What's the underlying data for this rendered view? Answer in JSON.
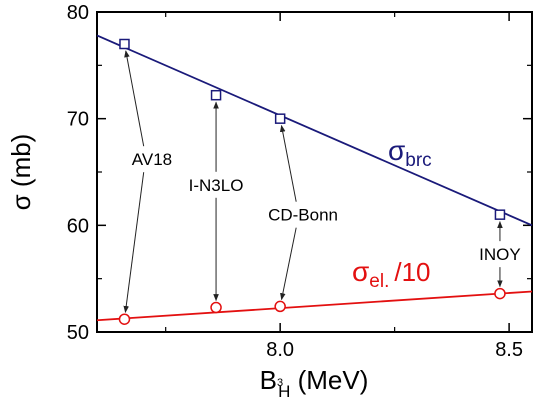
{
  "chart_data": {
    "type": "scatter",
    "x_axis": {
      "label_main": "B",
      "label_sup": "3",
      "label_sub": "H",
      "label_unit": " (MeV)",
      "range": [
        7.6,
        8.55
      ],
      "ticks": [
        8.0,
        8.5
      ],
      "tick_labels": [
        "8.0",
        "8.5"
      ],
      "minor_ticks": [
        7.75,
        8.25
      ]
    },
    "y_axis": {
      "label_main": "σ",
      "label_unit": " (mb)",
      "range": [
        50,
        80
      ],
      "ticks": [
        50,
        60,
        70,
        80
      ],
      "tick_labels": [
        "50",
        "60",
        "70",
        "80"
      ],
      "minor_ticks": [
        55,
        65,
        75
      ]
    },
    "grid": false,
    "series": [
      {
        "key": "brc",
        "name_main": "σ",
        "name_sub": "brc",
        "color": "#1a1a7a",
        "marker": "square",
        "points": [
          {
            "x": 7.66,
            "y": 77.0
          },
          {
            "x": 7.86,
            "y": 72.2
          },
          {
            "x": 8.0,
            "y": 70.0
          },
          {
            "x": 8.48,
            "y": 61.0
          }
        ],
        "fit_line": [
          [
            7.6,
            77.8
          ],
          [
            8.55,
            60.0
          ]
        ]
      },
      {
        "key": "el",
        "name_main": "σ",
        "name_sub": "el.",
        "name_suffix": "/10",
        "color": "#e31010",
        "marker": "circle",
        "points": [
          {
            "x": 7.66,
            "y": 51.2
          },
          {
            "x": 7.86,
            "y": 52.3
          },
          {
            "x": 8.0,
            "y": 52.4
          },
          {
            "x": 8.48,
            "y": 53.6
          }
        ],
        "fit_line": [
          [
            7.6,
            51.1
          ],
          [
            8.55,
            53.8
          ]
        ]
      }
    ],
    "annotations": [
      {
        "text": "AV18",
        "at": [
          7.72,
          66.2
        ],
        "targets": [
          [
            7.66,
            77.0
          ],
          [
            7.66,
            51.2
          ]
        ]
      },
      {
        "text": "I-N3LO",
        "at": [
          7.86,
          63.8
        ],
        "targets": [
          [
            7.86,
            72.2
          ],
          [
            7.86,
            52.3
          ]
        ]
      },
      {
        "text": "CD-Bonn",
        "at": [
          8.05,
          61.0
        ],
        "targets": [
          [
            8.0,
            70.0
          ],
          [
            8.0,
            52.4
          ]
        ]
      },
      {
        "text": "INOY",
        "at": [
          8.48,
          57.3
        ],
        "targets": [
          [
            8.48,
            61.0
          ],
          [
            8.48,
            53.6
          ]
        ]
      }
    ]
  }
}
